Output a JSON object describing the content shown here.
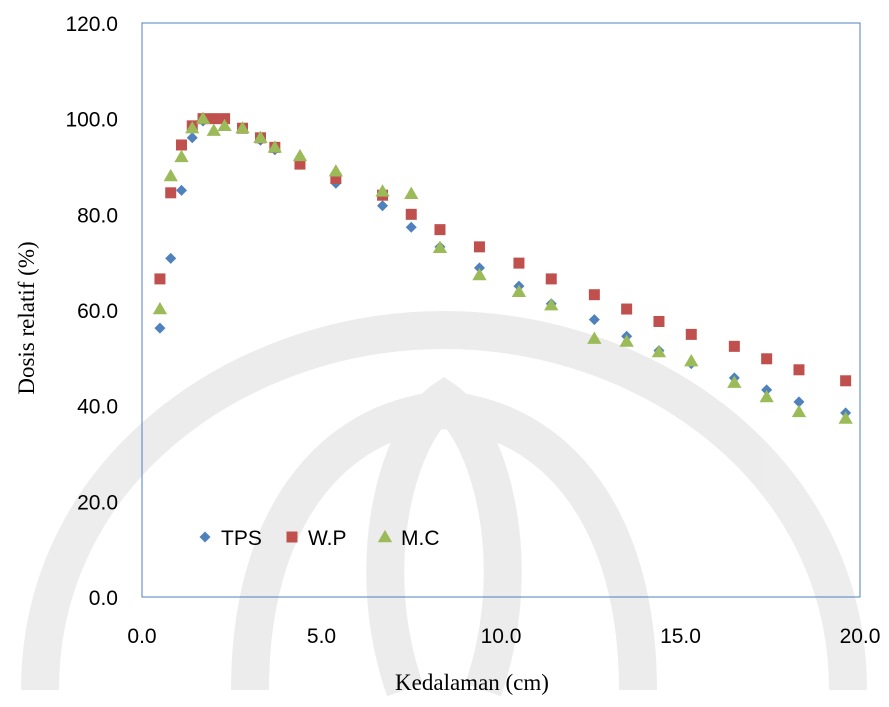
{
  "chart_data": {
    "type": "scatter",
    "xlabel": "Kedalaman (cm)",
    "ylabel": "Dosis relatif (%)",
    "xlim": [
      0,
      20
    ],
    "ylim": [
      0,
      120
    ],
    "x_ticks": [
      "0.0",
      "5.0",
      "10.0",
      "15.0",
      "20.0"
    ],
    "y_ticks": [
      "0.0",
      "20.0",
      "40.0",
      "60.0",
      "80.0",
      "100.0",
      "120.0"
    ],
    "x_tick_values": [
      0,
      5,
      10,
      15,
      20
    ],
    "y_tick_values": [
      0,
      20,
      40,
      60,
      80,
      100,
      120
    ],
    "grid": false,
    "legend_position": "bottom-left",
    "series": [
      {
        "name": "TPS",
        "color": "#4f81bd",
        "marker": "diamond",
        "x": [
          0.5,
          0.8,
          1.1,
          1.4,
          1.7,
          2.0,
          2.3,
          2.8,
          3.3,
          3.7,
          4.4,
          5.4,
          6.7,
          7.5,
          8.3,
          9.4,
          10.5,
          11.4,
          12.6,
          13.5,
          14.4,
          15.3,
          16.5,
          17.4,
          18.3,
          19.6
        ],
        "y": [
          56.2,
          70.8,
          85.0,
          96.0,
          99.5,
          100.0,
          99.8,
          98.0,
          95.5,
          93.5,
          91.0,
          86.5,
          81.8,
          77.3,
          73.2,
          68.8,
          65.0,
          61.3,
          58.0,
          54.5,
          51.5,
          48.8,
          45.8,
          43.3,
          40.8,
          38.5
        ]
      },
      {
        "name": "W.P",
        "color": "#c0504d",
        "marker": "square",
        "x": [
          0.5,
          0.8,
          1.1,
          1.4,
          1.7,
          2.0,
          2.3,
          2.8,
          3.3,
          3.7,
          4.4,
          5.4,
          6.7,
          7.5,
          8.3,
          9.4,
          10.5,
          11.4,
          12.6,
          13.5,
          14.4,
          15.3,
          16.5,
          17.4,
          18.3,
          19.6
        ],
        "y": [
          66.5,
          84.5,
          94.5,
          98.5,
          100.0,
          100.0,
          100.0,
          98.0,
          96.0,
          94.0,
          90.5,
          87.5,
          84.0,
          80.0,
          76.8,
          73.2,
          69.8,
          66.5,
          63.2,
          60.2,
          57.6,
          54.9,
          52.4,
          49.8,
          47.5,
          45.2
        ]
      },
      {
        "name": "M.C",
        "color": "#9bbb59",
        "marker": "triangle",
        "x": [
          0.5,
          0.8,
          1.1,
          1.4,
          1.7,
          2.0,
          2.3,
          2.8,
          3.3,
          3.7,
          4.4,
          5.4,
          6.7,
          7.5,
          8.3,
          9.4,
          10.5,
          11.4,
          12.6,
          13.5,
          14.4,
          15.3,
          16.5,
          17.4,
          18.3,
          19.6
        ],
        "y": [
          60.2,
          88.0,
          92.0,
          98.0,
          100.0,
          97.5,
          98.5,
          98.0,
          96.0,
          94.0,
          92.2,
          89.0,
          84.8,
          84.3,
          73.0,
          67.3,
          63.8,
          61.0,
          54.0,
          53.4,
          51.2,
          49.3,
          44.8,
          41.8,
          38.7,
          37.3
        ]
      }
    ]
  }
}
